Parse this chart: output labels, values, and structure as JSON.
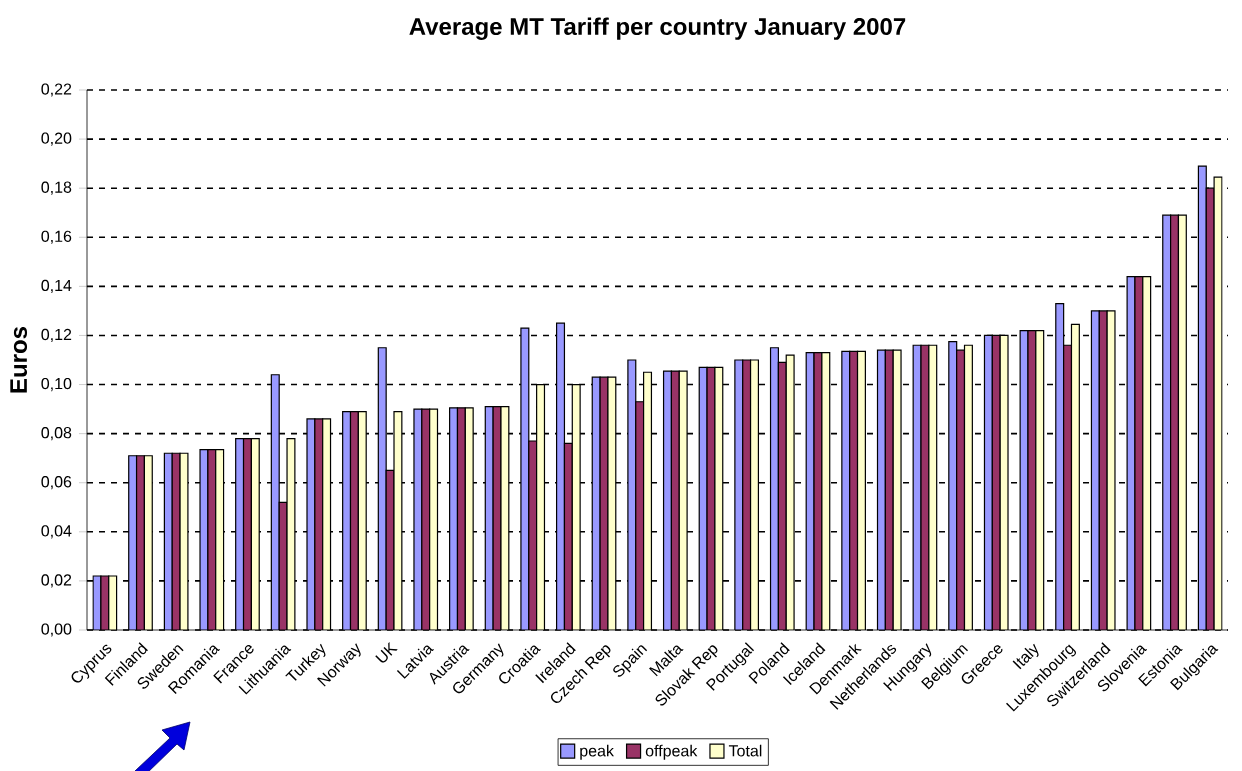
{
  "chart_data": {
    "type": "bar",
    "title": "Average MT Tariff per country January 2007",
    "ylabel": "Euros",
    "categories": [
      "Cyprus",
      "Finland",
      "Sweden",
      "Romania",
      "France",
      "Lithuania",
      "Turkey",
      "Norway",
      "UK",
      "Latvia",
      "Austria",
      "Germany",
      "Croatia",
      "Ireland",
      "Czech Rep",
      "Spain",
      "Malta",
      "Slovak Rep",
      "Portugal",
      "Poland",
      "Iceland",
      "Denmark",
      "Netherlands",
      "Hungary",
      "Belgium",
      "Greece",
      "Italy",
      "Luxembourg",
      "Switzerland",
      "Slovenia",
      "Estonia",
      "Bulgaria"
    ],
    "series": [
      {
        "name": "peak",
        "color": "#9999ff",
        "values": [
          0.022,
          0.071,
          0.072,
          0.0735,
          0.078,
          0.104,
          0.086,
          0.089,
          0.115,
          0.09,
          0.0905,
          0.091,
          0.123,
          0.125,
          0.103,
          0.11,
          0.1055,
          0.107,
          0.11,
          0.115,
          0.113,
          0.1135,
          0.114,
          0.116,
          0.1175,
          0.12,
          0.122,
          0.133,
          0.13,
          0.144,
          0.169,
          0.189
        ]
      },
      {
        "name": "offpeak",
        "color": "#993366",
        "values": [
          0.022,
          0.071,
          0.072,
          0.0735,
          0.078,
          0.052,
          0.086,
          0.089,
          0.065,
          0.09,
          0.0905,
          0.091,
          0.077,
          0.076,
          0.103,
          0.093,
          0.1055,
          0.107,
          0.11,
          0.109,
          0.113,
          0.1135,
          0.114,
          0.116,
          0.114,
          0.12,
          0.122,
          0.116,
          0.13,
          0.144,
          0.169,
          0.18
        ]
      },
      {
        "name": "Total",
        "color": "#ffffcc",
        "values": [
          0.022,
          0.071,
          0.072,
          0.0735,
          0.078,
          0.078,
          0.086,
          0.089,
          0.089,
          0.09,
          0.0905,
          0.091,
          0.1,
          0.1,
          0.103,
          0.105,
          0.1055,
          0.107,
          0.11,
          0.112,
          0.113,
          0.1135,
          0.114,
          0.116,
          0.116,
          0.12,
          0.122,
          0.1245,
          0.13,
          0.144,
          0.169,
          0.1845
        ]
      }
    ],
    "ylim": [
      0,
      0.22
    ],
    "yticks": [
      {
        "value": 0,
        "label": "0,00"
      },
      {
        "value": 0.02,
        "label": "0,02"
      },
      {
        "value": 0.04,
        "label": "0,04"
      },
      {
        "value": 0.06,
        "label": "0,06"
      },
      {
        "value": 0.08,
        "label": "0,08"
      },
      {
        "value": 0.1,
        "label": "0,10"
      },
      {
        "value": 0.12,
        "label": "0,12"
      },
      {
        "value": 0.14,
        "label": "0,14"
      },
      {
        "value": 0.16,
        "label": "0,16"
      },
      {
        "value": 0.18,
        "label": "0,18"
      },
      {
        "value": 0.2,
        "label": "0,20"
      },
      {
        "value": 0.22,
        "label": "0,22"
      }
    ],
    "grid": "y",
    "legend": "bottom"
  }
}
